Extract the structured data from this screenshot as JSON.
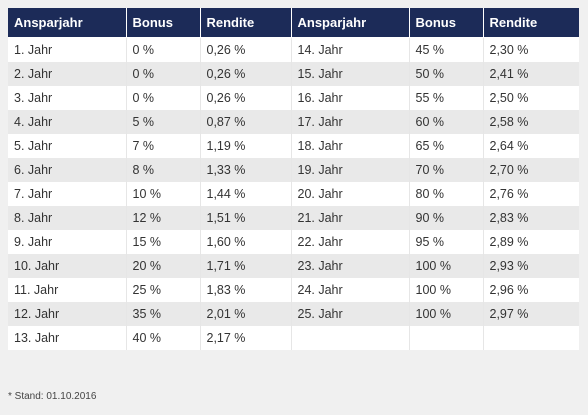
{
  "table": {
    "headers": [
      "Ansparjahr",
      "Bonus",
      "Rendite",
      "Ansparjahr",
      "Bonus",
      "Rendite"
    ],
    "rows": [
      [
        "1. Jahr",
        "0 %",
        "0,26 %",
        "14. Jahr",
        "45 %",
        "2,30 %"
      ],
      [
        "2. Jahr",
        "0 %",
        "0,26 %",
        "15. Jahr",
        "50 %",
        "2,41 %"
      ],
      [
        "3. Jahr",
        "0 %",
        "0,26 %",
        "16. Jahr",
        "55 %",
        "2,50 %"
      ],
      [
        "4. Jahr",
        "5 %",
        "0,87 %",
        "17. Jahr",
        "60 %",
        "2,58 %"
      ],
      [
        "5. Jahr",
        "7 %",
        "1,19 %",
        "18. Jahr",
        "65 %",
        "2,64 %"
      ],
      [
        "6. Jahr",
        "8 %",
        "1,33 %",
        "19. Jahr",
        "70 %",
        "2,70 %"
      ],
      [
        "7. Jahr",
        "10 %",
        "1,44 %",
        "20. Jahr",
        "80 %",
        "2,76 %"
      ],
      [
        "8. Jahr",
        "12 %",
        "1,51 %",
        "21. Jahr",
        "90 %",
        "2,83 %"
      ],
      [
        "9. Jahr",
        "15 %",
        "1,60 %",
        "22. Jahr",
        "95 %",
        "2,89 %"
      ],
      [
        "10. Jahr",
        "20 %",
        "1,71 %",
        "23. Jahr",
        "100 %",
        "2,93 %"
      ],
      [
        "11. Jahr",
        "25 %",
        "1,83 %",
        "24. Jahr",
        "100 %",
        "2,96 %"
      ],
      [
        "12. Jahr",
        "35 %",
        "2,01 %",
        "25. Jahr",
        "100 %",
        "2,97 %"
      ],
      [
        "13. Jahr",
        "40 %",
        "2,17 %",
        "",
        "",
        ""
      ]
    ]
  },
  "footnote": "* Stand: 01.10.2016",
  "colors": {
    "header_bg": "#1c2b58",
    "header_text": "#ffffff",
    "row_even": "#ffffff",
    "row_odd": "#e9e9e9",
    "page_bg": "#f0f0f0"
  }
}
